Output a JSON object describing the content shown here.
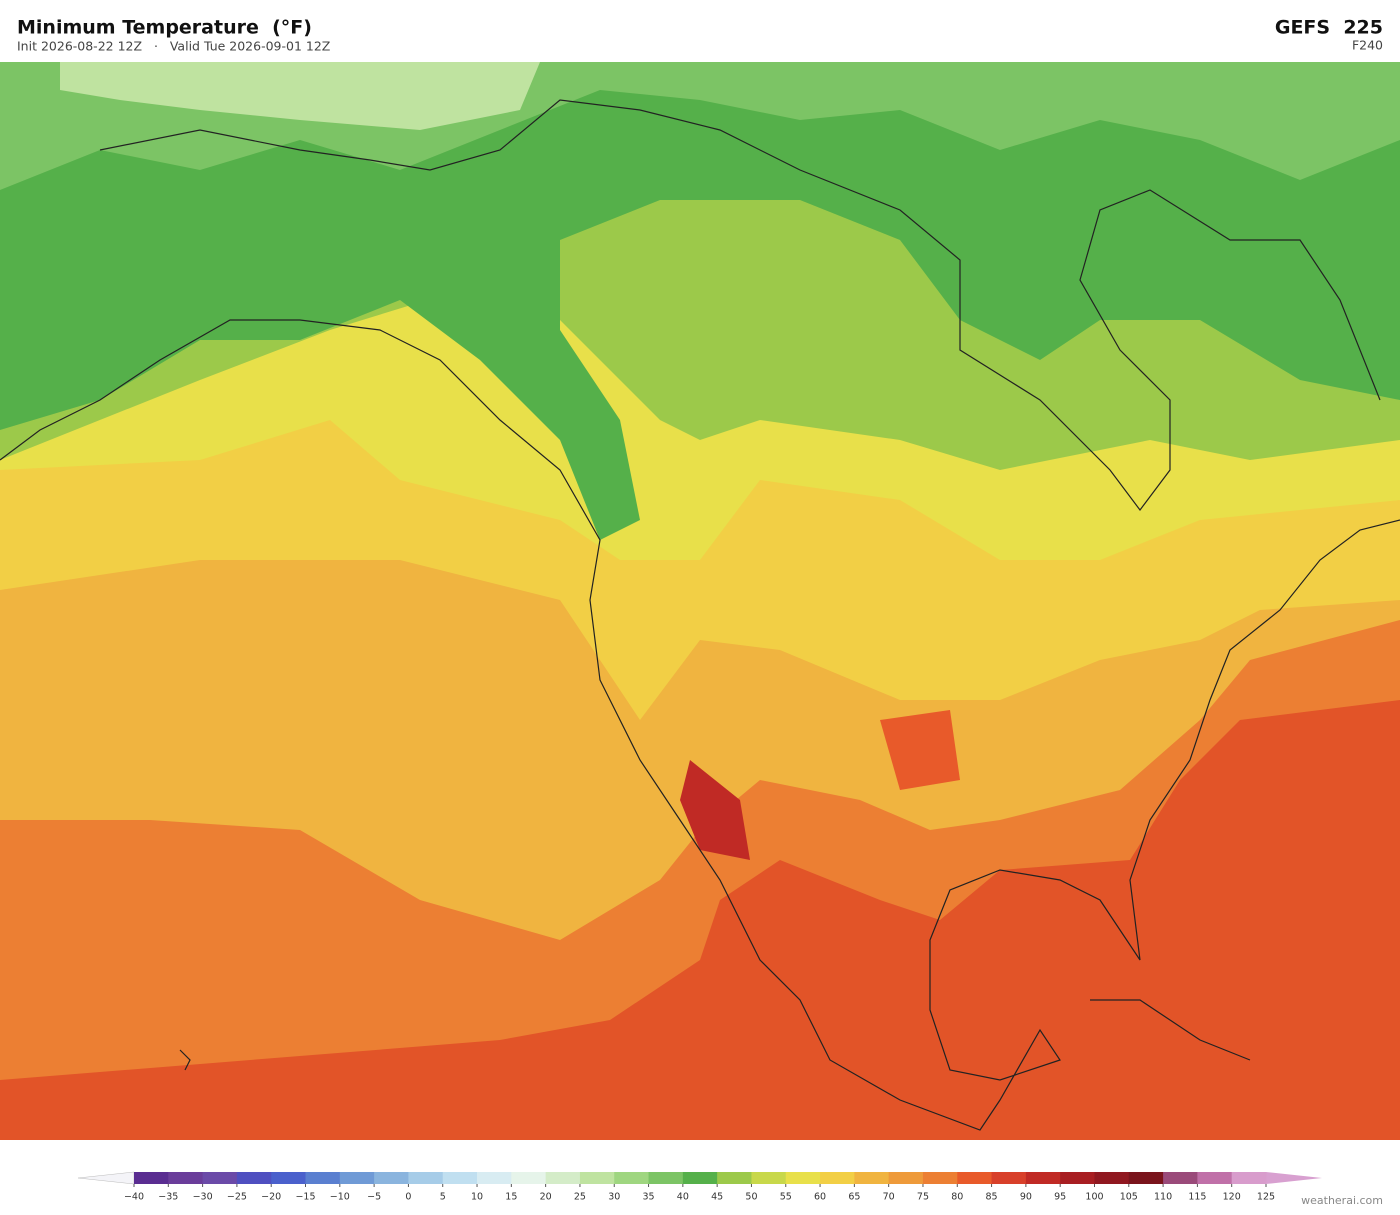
{
  "header": {
    "title": "Minimum Temperature  (°F)",
    "subtitle": "Init 2026-08-22 12Z   ·   Valid Tue 2026-09-01 12Z",
    "model": "GEFS  225",
    "forecast_hour": "F240"
  },
  "colorbar": {
    "ticks": [
      {
        "value": -40,
        "label": "−40"
      },
      {
        "value": -35,
        "label": "−35"
      },
      {
        "value": -30,
        "label": "−30"
      },
      {
        "value": -25,
        "label": "−25"
      },
      {
        "value": -20,
        "label": "−20"
      },
      {
        "value": -15,
        "label": "−15"
      },
      {
        "value": -10,
        "label": "−10"
      },
      {
        "value": -5,
        "label": "−5"
      },
      0,
      5,
      10,
      15,
      20,
      25,
      30,
      35,
      40,
      45,
      50,
      55,
      60,
      65,
      70,
      75,
      80,
      85,
      90,
      95,
      100,
      105,
      110,
      115,
      120,
      125
    ],
    "colors": [
      "#5a2d91",
      "#6a3d9a",
      "#6b4aa8",
      "#4f4fc0",
      "#4a60cc",
      "#5a7fd0",
      "#6f9ad6",
      "#8ab4de",
      "#a6cce8",
      "#c0dff0",
      "#d8ecf2",
      "#e6f4ea",
      "#d4ecc8",
      "#bfe3a0",
      "#9fd680",
      "#7cc465",
      "#55b04a",
      "#9cc94a",
      "#c8d84a",
      "#e8e04a",
      "#f2cf45",
      "#f0b440",
      "#ee9a3a",
      "#ec7f33",
      "#e85a2a",
      "#d8402a",
      "#c02a25",
      "#a81e22",
      "#901820",
      "#7a141c",
      "#9a4a7a",
      "#c070a8",
      "#d89ccc"
    ],
    "under_color": "#f4f4f8",
    "over_color": "#d8a0d0"
  },
  "footer": {
    "credit": "weatherai.com"
  }
}
